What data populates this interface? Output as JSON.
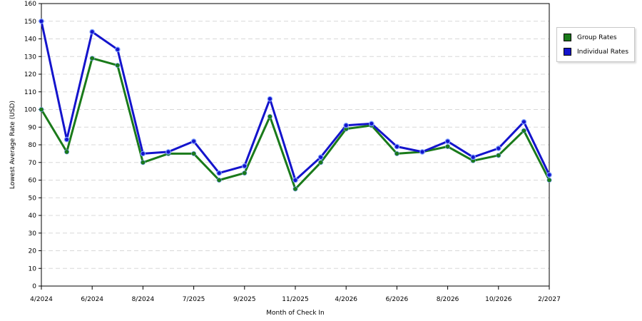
{
  "chart_data": {
    "type": "line",
    "xlabel": "Month of Check In",
    "ylabel": "Lowest Average Rate (USD)",
    "ylim": [
      0,
      160
    ],
    "yticks": [
      0,
      10,
      20,
      30,
      40,
      50,
      60,
      70,
      80,
      90,
      100,
      110,
      120,
      130,
      140,
      150,
      160
    ],
    "grid": true,
    "legend_position": "right",
    "x_tick_labels": [
      "4/2024",
      "6/2024",
      "8/2024",
      "7/2025",
      "9/2025",
      "11/2025",
      "4/2026",
      "6/2026",
      "8/2026",
      "10/2026",
      "2/2027"
    ],
    "series": [
      {
        "name": "Group Rates",
        "color": "#1a7a1a",
        "values": [
          100,
          76,
          129,
          125,
          70,
          75,
          75,
          60,
          64,
          96,
          55,
          70,
          89,
          91,
          75,
          76,
          79,
          71,
          74,
          88,
          60
        ]
      },
      {
        "name": "Individual Rates",
        "color": "#1414cc",
        "values": [
          150,
          83,
          144,
          134,
          75,
          76,
          82,
          64,
          68,
          106,
          60,
          73,
          91,
          92,
          79,
          76,
          82,
          73,
          78,
          93,
          63
        ]
      }
    ]
  }
}
